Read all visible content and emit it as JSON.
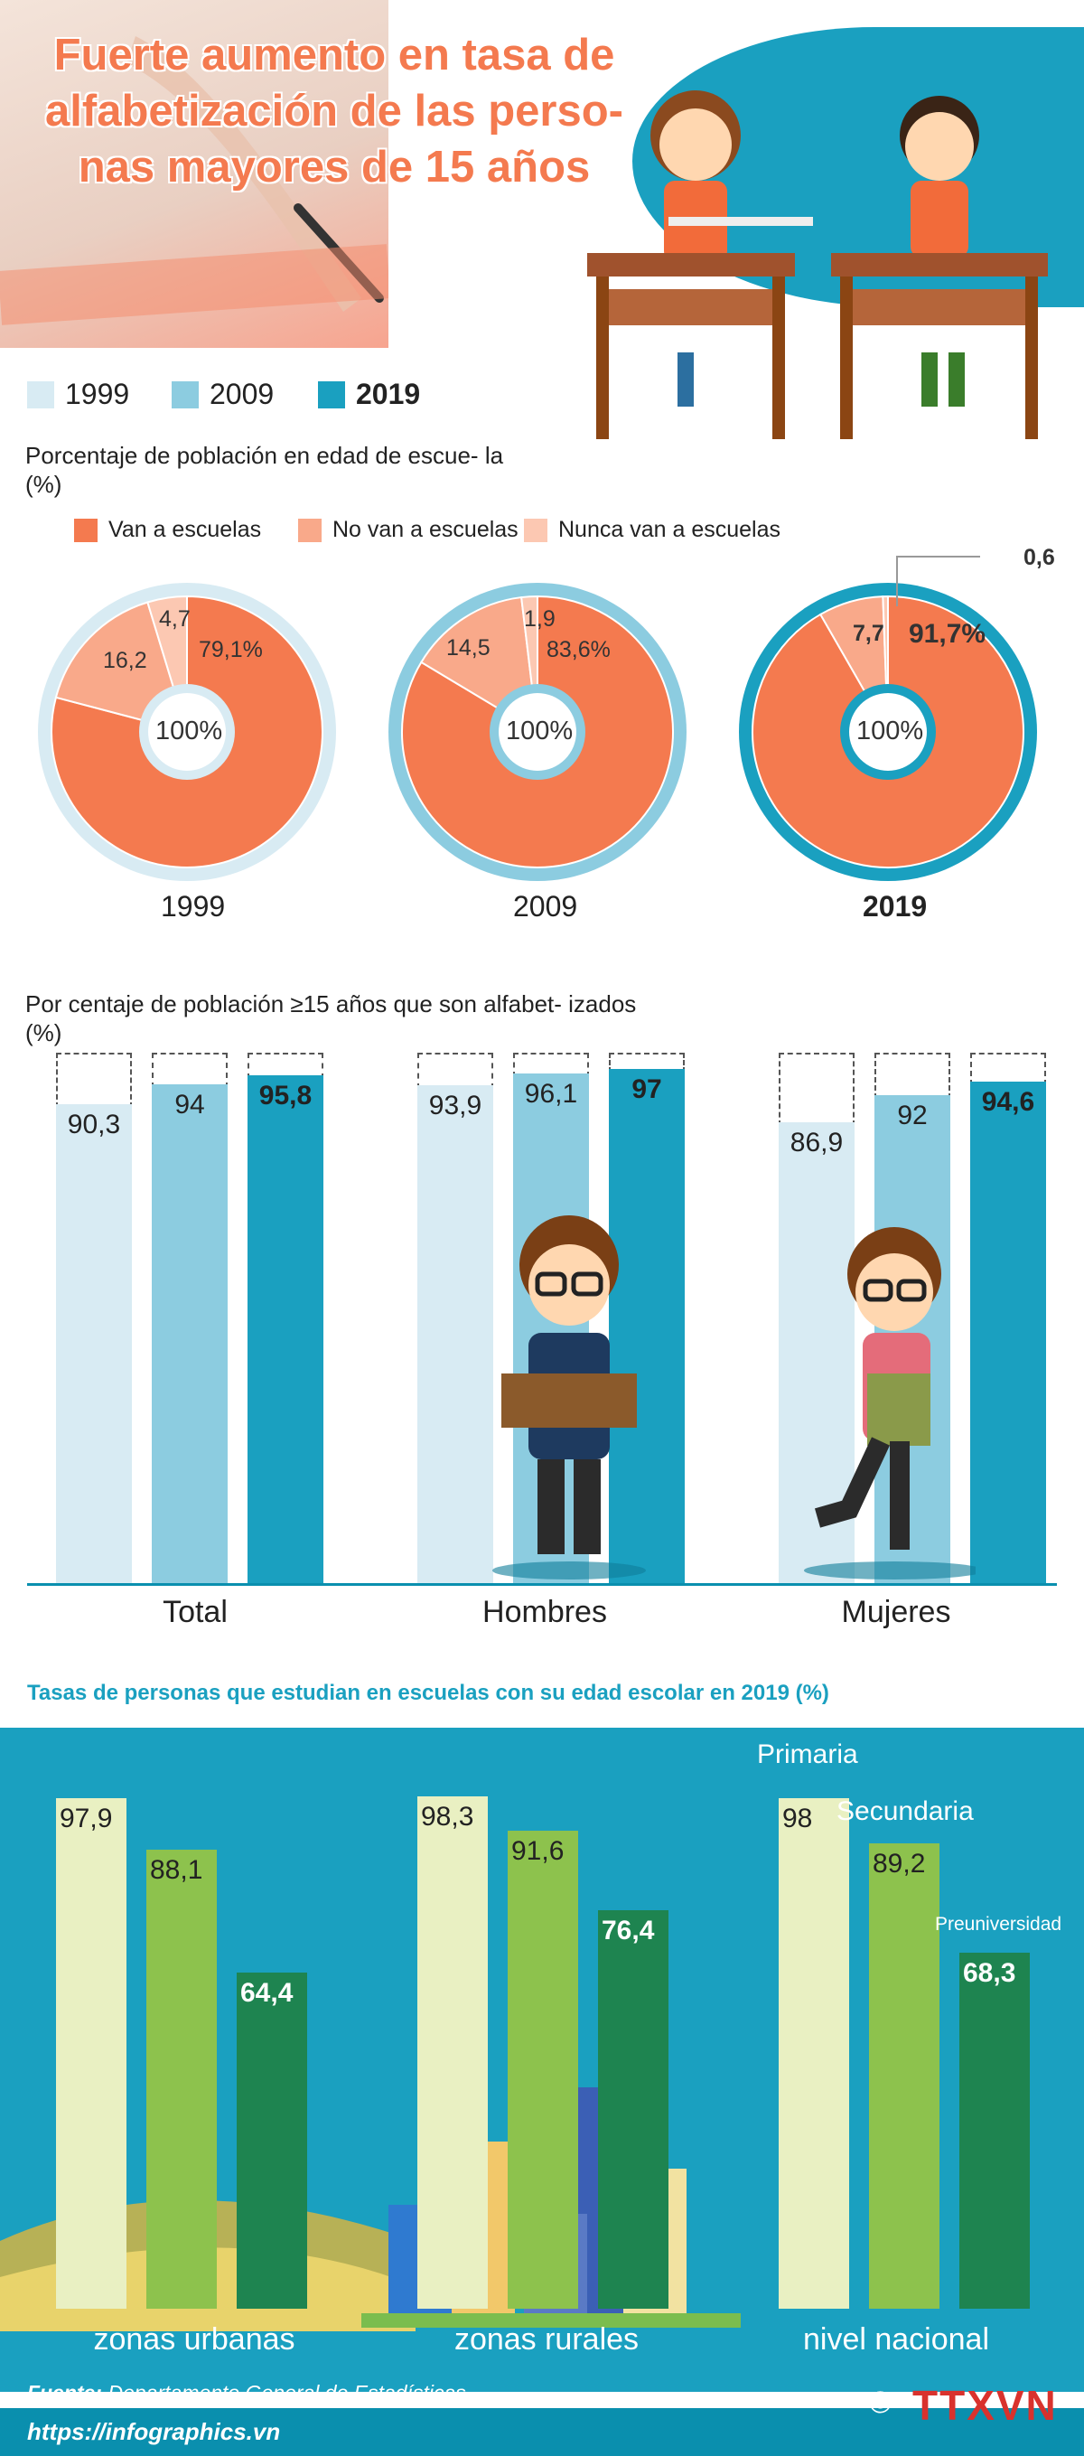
{
  "header": {
    "title": "Fuerte aumento en tasa de alfabetización de las perso- nas mayores de 15 años"
  },
  "legend": {
    "years": [
      {
        "label": "1999",
        "color": "#d8ebf3"
      },
      {
        "label": "2009",
        "color": "#8ccce0"
      },
      {
        "label": "2019",
        "color": "#1aa0c0"
      }
    ]
  },
  "section1": {
    "title": "Porcentaje de población en edad de escue- la (%)",
    "categories": [
      {
        "label": "Van a escuelas",
        "color": "#f47a4f"
      },
      {
        "label": "No van a escuelas",
        "color": "#f9a98a"
      },
      {
        "label": "Nunca van a escuelas",
        "color": "#fcc8b2"
      }
    ],
    "center_label": "100%",
    "donuts": [
      {
        "year": "1999",
        "labels": [
          "79,1%",
          "16,2",
          "4,7"
        ]
      },
      {
        "year": "2009",
        "labels": [
          "83,6%",
          "14,5",
          "1,9"
        ]
      },
      {
        "year": "2019",
        "labels": [
          "91,7%",
          "7,7",
          "0,6"
        ]
      }
    ]
  },
  "section2": {
    "title": "Por centaje de población ≥15 años que son alfabet- izados (%)",
    "groups": [
      "Total",
      "Hombres",
      "Mujeres"
    ],
    "value_labels": [
      [
        "90,3",
        "94",
        "95,8"
      ],
      [
        "93,9",
        "96,1",
        "97"
      ],
      [
        "86,9",
        "92",
        "94,6"
      ]
    ]
  },
  "section3": {
    "title": "Tasas de personas que estudian en escuelas con su edad escolar en 2019 (%)",
    "levels": [
      "Primaria",
      "Secundaria",
      "Preuniversidad"
    ],
    "zones": [
      "zonas urbanas",
      "zonas rurales",
      "nivel nacional"
    ],
    "value_labels": [
      [
        "97,9",
        "88,1",
        "64,4"
      ],
      [
        "98,3",
        "91,6",
        "76,4"
      ],
      [
        "98",
        "89,2",
        "68,3"
      ]
    ]
  },
  "footer": {
    "source_label": "Fuente:",
    "source_text": "Departamento General de Estadísticas",
    "url": "https://infographics.vn",
    "copyright": "©",
    "logo": "TTXVN"
  },
  "chart_data": [
    {
      "type": "pie",
      "title": "Porcentaje de población en edad de escuela (%)",
      "categories": [
        "Van a escuelas",
        "No van a escuelas",
        "Nunca van a escuelas"
      ],
      "series": [
        {
          "name": "1999",
          "values": [
            79.1,
            16.2,
            4.7
          ]
        },
        {
          "name": "2009",
          "values": [
            83.6,
            14.5,
            1.9
          ]
        },
        {
          "name": "2019",
          "values": [
            91.7,
            7.7,
            0.6
          ]
        }
      ]
    },
    {
      "type": "bar",
      "title": "Por centaje de población ≥15 años que son alfabetizados (%)",
      "categories": [
        "Total",
        "Hombres",
        "Mujeres"
      ],
      "series": [
        {
          "name": "1999",
          "values": [
            90.3,
            93.9,
            86.9
          ]
        },
        {
          "name": "2009",
          "values": [
            94,
            96.1,
            92
          ]
        },
        {
          "name": "2019",
          "values": [
            95.8,
            97,
            94.6
          ]
        }
      ],
      "ylim": [
        0,
        100
      ]
    },
    {
      "type": "bar",
      "title": "Tasas de personas que estudian en escuelas con su edad escolar en 2019 (%)",
      "categories": [
        "zonas urbanas",
        "zonas rurales",
        "nivel nacional"
      ],
      "series": [
        {
          "name": "Primaria",
          "values": [
            97.9,
            98.3,
            98
          ]
        },
        {
          "name": "Secundaria",
          "values": [
            88.1,
            91.6,
            89.2
          ]
        },
        {
          "name": "Preuniversidad",
          "values": [
            64.4,
            76.4,
            68.3
          ]
        }
      ],
      "colors": [
        "#e9f0c2",
        "#8dc24d",
        "#1e8450"
      ],
      "ylim": [
        0,
        100
      ]
    }
  ]
}
